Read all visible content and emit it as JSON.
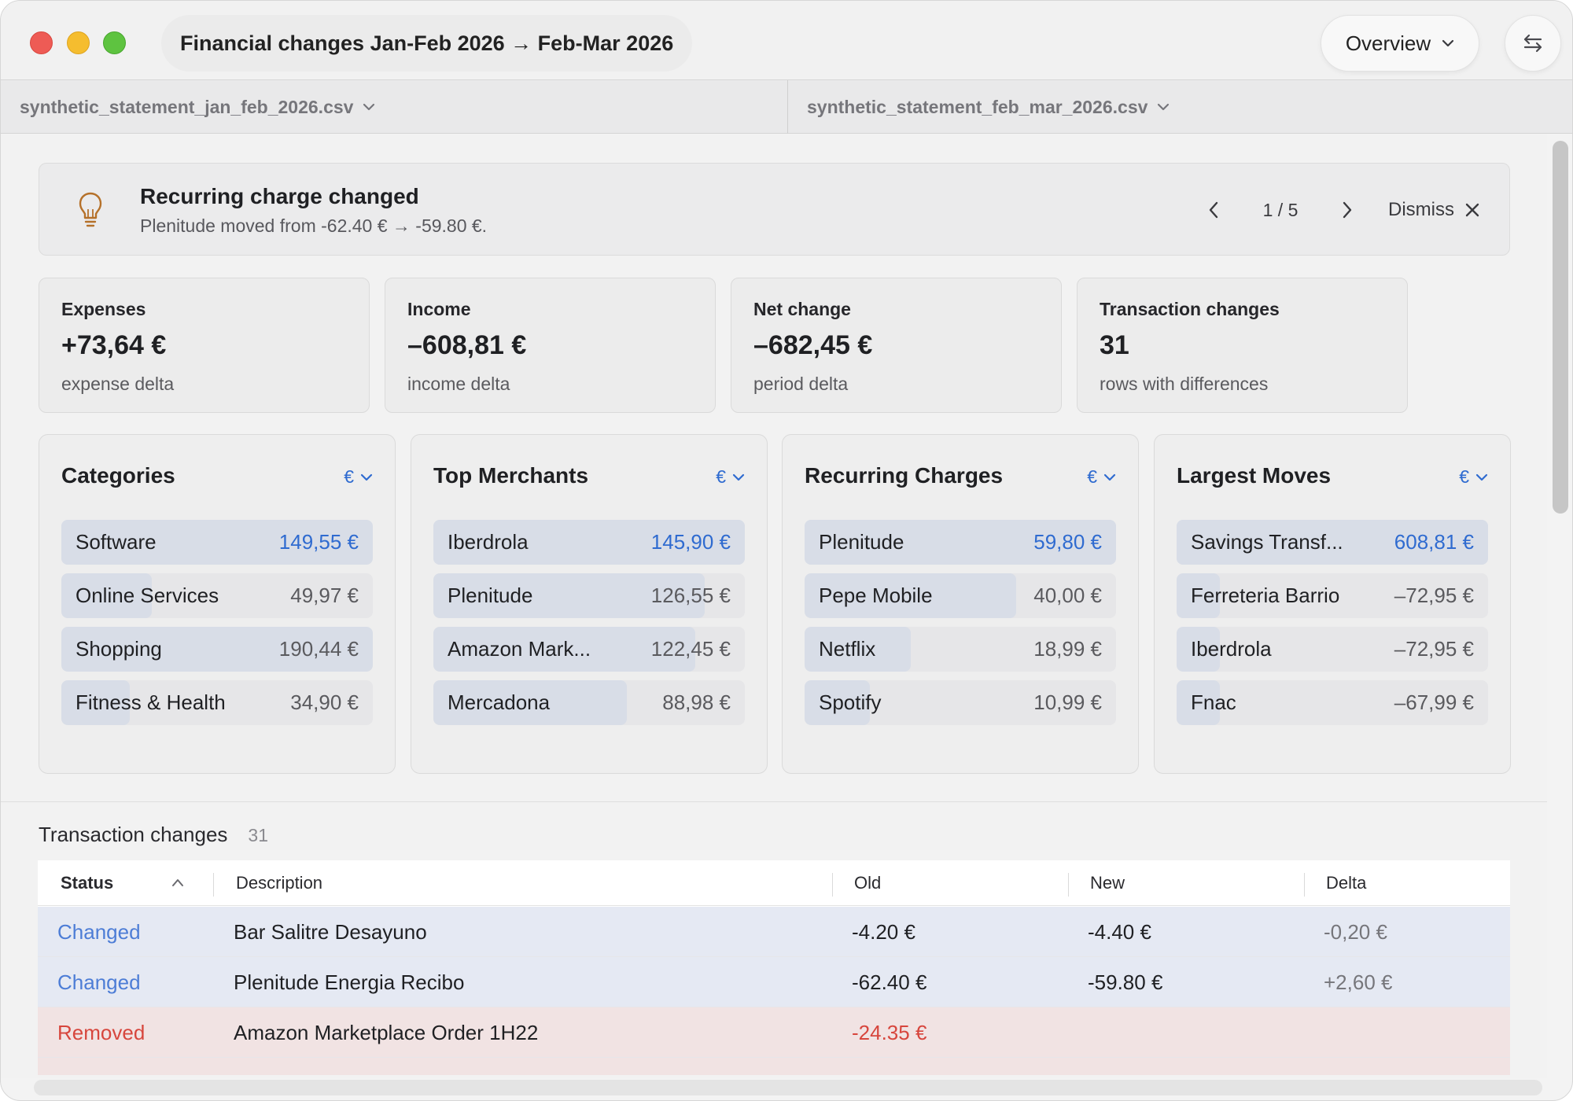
{
  "window": {
    "title": "Financial changes Jan-Feb 2026 → Feb-Mar 2026",
    "view_menu": {
      "label": "Overview"
    },
    "swap_icon": "swap-arrows-icon"
  },
  "files": {
    "left": "synthetic_statement_jan_feb_2026.csv",
    "right": "synthetic_statement_feb_mar_2026.csv"
  },
  "insight": {
    "icon": "lightbulb-icon",
    "title": "Recurring charge changed",
    "message": "Plenitude moved from -62.40 € → -59.80 €.",
    "position": "1 / 5",
    "dismiss_label": "Dismiss"
  },
  "stats": [
    {
      "label": "Expenses",
      "value": "+73,64 €",
      "sub": "expense delta"
    },
    {
      "label": "Income",
      "value": "–608,81 €",
      "sub": "income delta"
    },
    {
      "label": "Net change",
      "value": "–682,45 €",
      "sub": "period delta"
    },
    {
      "label": "Transaction changes",
      "value": "31",
      "sub": "rows with differences"
    }
  ],
  "panels": [
    {
      "title": "Categories",
      "currency": "€",
      "rows": [
        {
          "label": "Software",
          "value": "149,55 €",
          "fill": 0.7
        },
        {
          "label": "Online Services",
          "value": "49,97 €",
          "fill": 0.29
        },
        {
          "label": "Shopping",
          "value": "190,44 €",
          "fill": 1.0
        },
        {
          "label": "Fitness & Health",
          "value": "34,90 €",
          "fill": 0.22
        }
      ]
    },
    {
      "title": "Top Merchants",
      "currency": "€",
      "rows": [
        {
          "label": "Iberdrola",
          "value": "145,90 €",
          "fill": 1.0
        },
        {
          "label": "Plenitude",
          "value": "126,55 €",
          "fill": 0.87
        },
        {
          "label": "Amazon Mark...",
          "value": "122,45 €",
          "fill": 0.84
        },
        {
          "label": "Mercadona",
          "value": "88,98 €",
          "fill": 0.62
        }
      ]
    },
    {
      "title": "Recurring Charges",
      "currency": "€",
      "rows": [
        {
          "label": "Plenitude",
          "value": "59,80 €",
          "fill": 1.0
        },
        {
          "label": "Pepe Mobile",
          "value": "40,00 €",
          "fill": 0.68
        },
        {
          "label": "Netflix",
          "value": "18,99 €",
          "fill": 0.34
        },
        {
          "label": "Spotify",
          "value": "10,99 €",
          "fill": 0.21
        }
      ]
    },
    {
      "title": "Largest Moves",
      "currency": "€",
      "rows": [
        {
          "label": "Savings Transf...",
          "value": "608,81 €",
          "fill": 1.0
        },
        {
          "label": "Ferreteria Barrio",
          "value": "–72,95 €",
          "fill": 0.14
        },
        {
          "label": "Iberdrola",
          "value": "–72,95 €",
          "fill": 0.14
        },
        {
          "label": "Fnac",
          "value": "–67,99 €",
          "fill": 0.14
        }
      ]
    }
  ],
  "transactions": {
    "heading": "Transaction changes",
    "count": "31",
    "columns": [
      "Status",
      "Description",
      "Old",
      "New",
      "Delta"
    ],
    "sort_icon": "chevron-up-icon",
    "rows": [
      {
        "status": "Changed",
        "description": "Bar Salitre Desayuno",
        "old": "-4.20 €",
        "new": "-4.40 €",
        "delta": "-0,20 €"
      },
      {
        "status": "Changed",
        "description": "Plenitude Energia Recibo",
        "old": "-62.40 €",
        "new": "-59.80 €",
        "delta": "+2,60 €"
      },
      {
        "status": "Removed",
        "description": "Amazon Marketplace Order 1H22",
        "old": "-24.35 €",
        "new": "",
        "delta": ""
      }
    ]
  },
  "colors": {
    "accent": "#2f6bd0",
    "changed": "#4d7dd6",
    "removed": "#d7463d",
    "bar_fill": "#d8dde7"
  }
}
